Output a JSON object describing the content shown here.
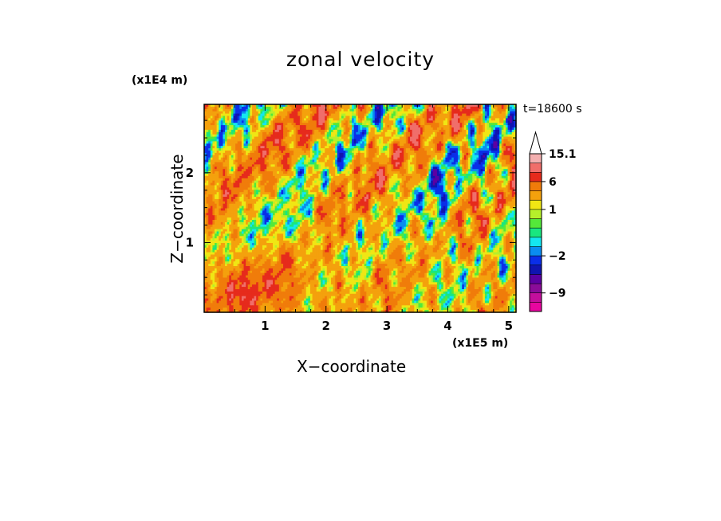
{
  "chart_data": {
    "type": "heatmap",
    "title": "zonal velocity",
    "xlabel": "X−coordinate",
    "ylabel": "Z−coordinate",
    "x_unit": "(x1E5 m)",
    "y_unit": "(x1E4 m)",
    "annotation": "t=18600 s",
    "xlim": [
      0,
      5.12
    ],
    "ylim": [
      0,
      2.98
    ],
    "x_ticks": [
      {
        "value": 1,
        "label": "1"
      },
      {
        "value": 2,
        "label": "2"
      },
      {
        "value": 3,
        "label": "3"
      },
      {
        "value": 4,
        "label": "4"
      },
      {
        "value": 5,
        "label": "5"
      }
    ],
    "y_ticks": [
      {
        "value": 1,
        "label": "1"
      },
      {
        "value": 2,
        "label": "2"
      }
    ],
    "colorbar": {
      "min": -13,
      "max": 15.1,
      "levels": [
        -13,
        -11,
        -9,
        -7,
        -5,
        -3.5,
        -2,
        -1.2,
        -0.5,
        0,
        0.5,
        1,
        2,
        4,
        6,
        8,
        12,
        15.1
      ],
      "colors": [
        "#e8069f",
        "#c30f9c",
        "#8a0c99",
        "#5c00a3",
        "#1014b0",
        "#0a2ee8",
        "#0a8cf0",
        "#14e6f0",
        "#19e680",
        "#54e83a",
        "#b6f02a",
        "#f0e614",
        "#f4a10d",
        "#f07c0a",
        "#e62b1c",
        "#f06e6a",
        "#f4b0b0"
      ],
      "overflow_color": "#ffffff",
      "labels": [
        {
          "value": 15.1,
          "label": "15.1"
        },
        {
          "value": 6,
          "label": "6"
        },
        {
          "value": 1,
          "label": "1"
        },
        {
          "value": -2,
          "label": "−2"
        },
        {
          "value": -9,
          "label": "−9"
        }
      ]
    }
  }
}
